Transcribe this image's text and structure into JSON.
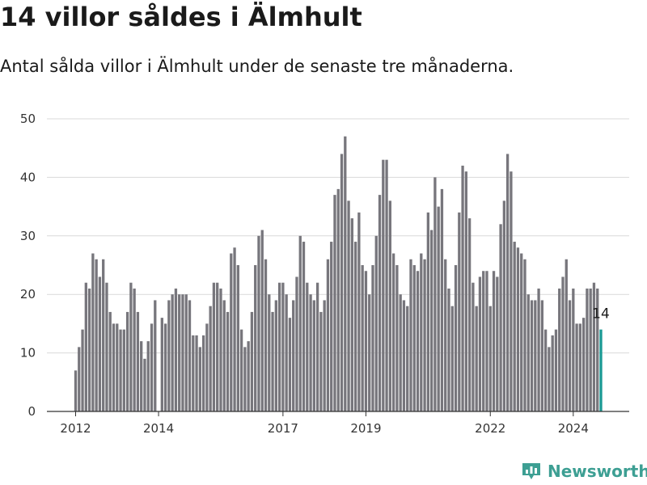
{
  "header": {
    "title": "14 villor såldes i Älmhult",
    "subtitle": "Antal sålda villor i Älmhult under de senaste tre månaderna."
  },
  "brand": {
    "name": "Newsworthy",
    "icon": "bar-chart-icon",
    "color": "#3d9f93"
  },
  "colors": {
    "bar": "#77767c",
    "highlight": "#1a9a94",
    "grid": "#d9d9d9",
    "axis": "#333333"
  },
  "chart_data": {
    "type": "bar",
    "title": "",
    "xlabel": "",
    "ylabel": "",
    "ylim": [
      0,
      50
    ],
    "yticks": [
      0,
      10,
      20,
      30,
      40,
      50
    ],
    "grid": true,
    "x_start": "2012-01",
    "x_end": "2024-09",
    "xtick_labels": [
      {
        "label": "2012",
        "month": "2012-01"
      },
      {
        "label": "2014",
        "month": "2014-01"
      },
      {
        "label": "2017",
        "month": "2017-01"
      },
      {
        "label": "2019",
        "month": "2019-01"
      },
      {
        "label": "2022",
        "month": "2022-01"
      },
      {
        "label": "2024",
        "month": "2024-01"
      }
    ],
    "values": [
      7,
      11,
      14,
      22,
      21,
      27,
      26,
      23,
      26,
      22,
      17,
      15,
      15,
      14,
      14,
      17,
      22,
      21,
      17,
      12,
      9,
      12,
      15,
      19,
      0,
      16,
      15,
      19,
      20,
      21,
      20,
      20,
      20,
      19,
      13,
      13,
      11,
      13,
      15,
      18,
      22,
      22,
      21,
      19,
      17,
      27,
      28,
      25,
      14,
      11,
      12,
      17,
      25,
      30,
      31,
      26,
      20,
      17,
      19,
      22,
      22,
      20,
      16,
      19,
      23,
      30,
      29,
      22,
      20,
      19,
      22,
      17,
      19,
      26,
      29,
      37,
      38,
      44,
      47,
      36,
      33,
      29,
      34,
      25,
      24,
      20,
      25,
      30,
      37,
      43,
      43,
      36,
      27,
      25,
      20,
      19,
      18,
      26,
      25,
      24,
      27,
      26,
      34,
      31,
      40,
      35,
      38,
      26,
      21,
      18,
      25,
      34,
      42,
      41,
      33,
      22,
      18,
      23,
      24,
      24,
      18,
      24,
      23,
      32,
      36,
      44,
      41,
      29,
      28,
      27,
      26,
      20,
      19,
      19,
      21,
      19,
      14,
      11,
      13,
      14,
      21,
      23,
      26,
      19,
      21,
      15,
      15,
      16,
      21,
      21,
      22,
      21,
      14
    ],
    "highlight_last": true,
    "last_label": "14"
  }
}
